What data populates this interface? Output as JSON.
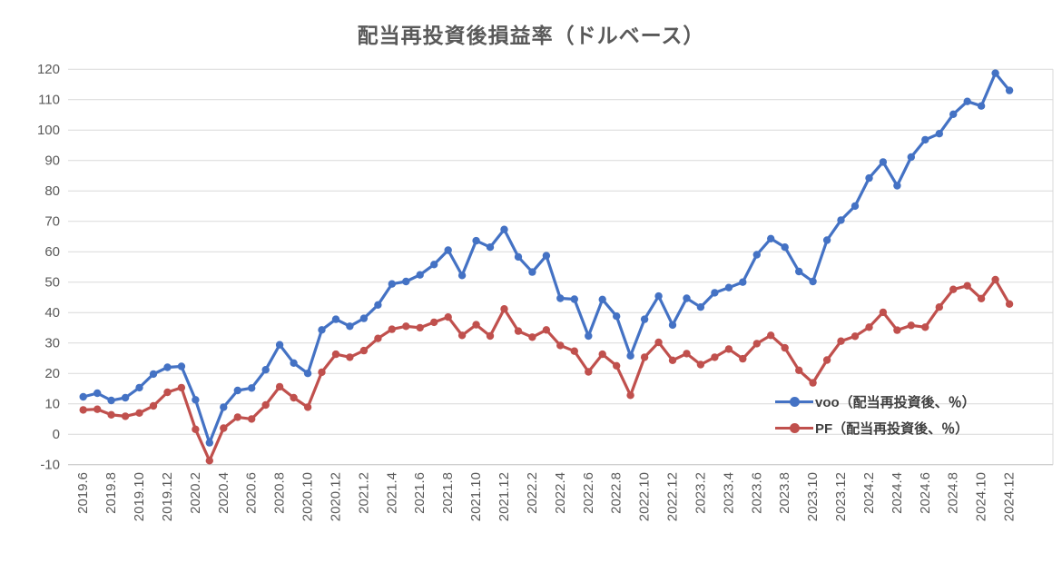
{
  "theme": {
    "background": "#FFFFFF",
    "grid_color": "#D9D9D9",
    "axis_line_color": "#BFBFBF",
    "tick_text_color": "#595959",
    "title_color": "#595959",
    "legend_text_color": "#3F3F3F"
  },
  "chart_data": {
    "type": "line",
    "title": "配当再投資後損益率（ドルベース）",
    "xlabel": "",
    "ylabel": "",
    "ylim": [
      -10,
      120
    ],
    "y_ticks": [
      120,
      110,
      100,
      90,
      80,
      70,
      60,
      50,
      40,
      30,
      20,
      10,
      0,
      -10
    ],
    "grid": true,
    "legend_position": "inside-right",
    "categories": [
      "2019.6",
      "2019.7",
      "2019.8",
      "2019.9",
      "2019.10",
      "2019.11",
      "2019.12",
      "2020.1",
      "2020.2",
      "2020.3",
      "2020.4",
      "2020.5",
      "2020.6",
      "2020.7",
      "2020.8",
      "2020.9",
      "2020.10",
      "2020.11",
      "2020.12",
      "2021.1",
      "2021.2",
      "2021.3",
      "2021.4",
      "2021.5",
      "2021.6",
      "2021.7",
      "2021.8",
      "2021.9",
      "2021.10",
      "2021.11",
      "2021.12",
      "2022.1",
      "2022.2",
      "2022.3",
      "2022.4",
      "2022.5",
      "2022.6",
      "2022.7",
      "2022.8",
      "2022.9",
      "2022.10",
      "2022.11",
      "2022.12",
      "2023.1",
      "2023.2",
      "2023.3",
      "2023.4",
      "2023.5",
      "2023.6",
      "2023.7",
      "2023.8",
      "2023.9",
      "2023.10",
      "2023.11",
      "2023.12",
      "2024.1",
      "2024.2",
      "2024.3",
      "2024.4",
      "2024.5",
      "2024.6",
      "2024.7",
      "2024.8",
      "2024.9",
      "2024.10",
      "2024.11",
      "2024.12"
    ],
    "x_tick_labels": [
      "2019.6",
      "2019.8",
      "2019.10",
      "2019.12",
      "2020.2",
      "2020.4",
      "2020.6",
      "2020.8",
      "2020.10",
      "2020.12",
      "2021.2",
      "2021.4",
      "2021.6",
      "2021.8",
      "2021.10",
      "2021.12",
      "2022.2",
      "2022.4",
      "2022.6",
      "2022.8",
      "2022.10",
      "2022.12",
      "2023.2",
      "2023.4",
      "2023.6",
      "2023.8",
      "2023.10",
      "2023.12",
      "2024.2",
      "2024.4",
      "2024.6",
      "2024.8",
      "2024.10",
      "2024.12"
    ],
    "series": [
      {
        "id": "voo",
        "name": "voo（配当再投資後、％）",
        "color": "#4472C4",
        "values": [
          12.3,
          13.5,
          11.1,
          12.0,
          15.3,
          19.8,
          22.0,
          22.3,
          11.3,
          -2.8,
          8.9,
          14.4,
          15.2,
          21.2,
          29.4,
          23.4,
          20.0,
          34.3,
          37.8,
          35.5,
          38.1,
          42.5,
          49.4,
          50.2,
          52.4,
          55.8,
          60.5,
          52.2,
          63.6,
          61.5,
          67.3,
          58.3,
          53.3,
          58.7,
          44.7,
          44.4,
          32.3,
          44.3,
          38.8,
          25.8,
          37.8,
          45.4,
          35.9,
          44.7,
          41.8,
          46.5,
          48.2,
          50.0,
          59.0,
          64.3,
          61.5,
          53.5,
          50.2,
          63.8,
          70.4,
          75.0,
          84.2,
          89.5,
          81.7,
          91.1,
          96.8,
          98.8,
          105.2,
          109.4,
          107.9,
          118.7,
          113.0
        ]
      },
      {
        "id": "pf",
        "name": "PF（配当再投資後、％）",
        "color": "#C0504D",
        "values": [
          8.0,
          8.2,
          6.4,
          5.9,
          7.0,
          9.3,
          13.8,
          15.3,
          1.6,
          -8.7,
          2.0,
          5.6,
          5.0,
          9.6,
          15.6,
          12.0,
          8.9,
          20.4,
          26.3,
          25.3,
          27.5,
          31.5,
          34.5,
          35.5,
          35.0,
          36.8,
          38.5,
          32.5,
          36.0,
          32.3,
          41.2,
          33.9,
          31.9,
          34.3,
          29.2,
          27.3,
          20.5,
          26.3,
          22.5,
          12.8,
          25.3,
          30.2,
          24.3,
          26.5,
          22.9,
          25.3,
          28.0,
          24.8,
          29.8,
          32.5,
          28.4,
          21.0,
          16.9,
          24.4,
          30.6,
          32.2,
          35.2,
          40.1,
          34.2,
          35.8,
          35.2,
          41.8,
          47.6,
          48.8,
          44.6,
          50.8,
          42.8
        ]
      }
    ]
  }
}
